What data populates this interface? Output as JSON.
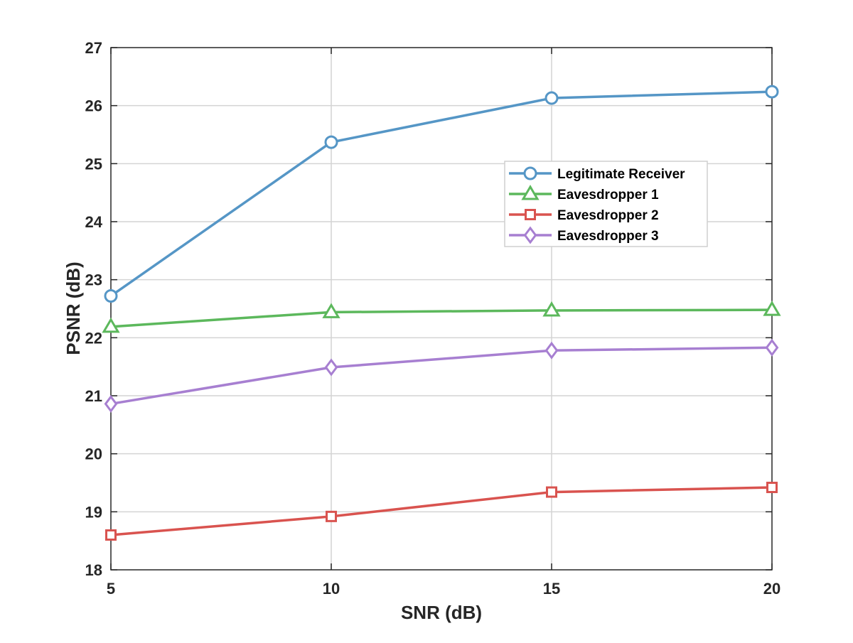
{
  "chart_data": {
    "type": "line",
    "xlabel": "SNR (dB)",
    "ylabel": "PSNR (dB)",
    "x": [
      5,
      10,
      15,
      20
    ],
    "xlim": [
      5,
      20
    ],
    "ylim": [
      18,
      27
    ],
    "xticks": [
      5,
      10,
      15,
      20
    ],
    "yticks": [
      18,
      19,
      20,
      21,
      22,
      23,
      24,
      25,
      26,
      27
    ],
    "xgrid_ticks": [
      10,
      15
    ],
    "grid": true,
    "legend_position": "upper-right",
    "series": [
      {
        "name": "Legitimate Receiver",
        "values": [
          22.72,
          25.37,
          26.13,
          26.24
        ],
        "color": "#5596c6",
        "marker": "circle"
      },
      {
        "name": "Eavesdropper 1",
        "values": [
          22.19,
          22.44,
          22.47,
          22.48
        ],
        "color": "#5cb85c",
        "marker": "triangle"
      },
      {
        "name": "Eavesdropper 2",
        "values": [
          18.6,
          18.92,
          19.34,
          19.42
        ],
        "color": "#d9534f",
        "marker": "square"
      },
      {
        "name": "Eavesdropper 3",
        "values": [
          20.86,
          21.49,
          21.78,
          21.83
        ],
        "color": "#a77fd1",
        "marker": "diamond"
      }
    ]
  }
}
